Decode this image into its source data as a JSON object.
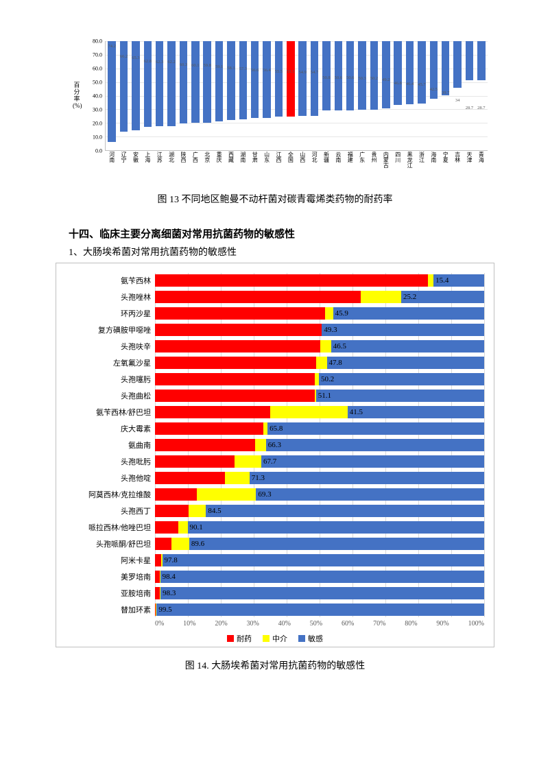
{
  "chart1": {
    "type": "bar",
    "ylabel": "百\n分\n率\n(%)",
    "ymax": 80.0,
    "ytick_step": 10.0,
    "yticks": [
      "0.0",
      "10.0",
      "20.0",
      "30.0",
      "40.0",
      "50.0",
      "60.0",
      "70.0",
      "80.0"
    ],
    "bar_color": "#4472c4",
    "highlight_color": "#ff0000",
    "grid_color": "#e6e6e6",
    "axis_color": "#bfbfbf",
    "label_color": "#595959",
    "font_size_labels": 6.5,
    "data": [
      {
        "cat": "河南",
        "val": 74.2,
        "highlight": false
      },
      {
        "cat": "辽宁",
        "val": 66.2,
        "highlight": false
      },
      {
        "cat": "安徽",
        "val": 65.3,
        "highlight": false
      },
      {
        "cat": "上海",
        "val": 62.8,
        "highlight": false
      },
      {
        "cat": "江苏",
        "val": 62.3,
        "highlight": false
      },
      {
        "cat": "湖北",
        "val": 62.2,
        "highlight": false
      },
      {
        "cat": "陕西",
        "val": 60.3,
        "highlight": false
      },
      {
        "cat": "广西",
        "val": 60.1,
        "highlight": false
      },
      {
        "cat": "北京",
        "val": 59.8,
        "highlight": false
      },
      {
        "cat": "重庆",
        "val": 59.1,
        "highlight": false
      },
      {
        "cat": "西藏",
        "val": 58.1,
        "highlight": false
      },
      {
        "cat": "湖南",
        "val": 57.3,
        "highlight": false
      },
      {
        "cat": "甘肃",
        "val": 56.6,
        "highlight": false
      },
      {
        "cat": "山东",
        "val": 56.4,
        "highlight": false
      },
      {
        "cat": "江西",
        "val": 55.5,
        "highlight": false
      },
      {
        "cat": "全国",
        "val": 55.3,
        "highlight": true
      },
      {
        "cat": "山西",
        "val": 54.9,
        "highlight": false
      },
      {
        "cat": "河北",
        "val": 54.7,
        "highlight": false
      },
      {
        "cat": "新疆",
        "val": 50.8,
        "highlight": false
      },
      {
        "cat": "云南",
        "val": 50.6,
        "highlight": false
      },
      {
        "cat": "福建",
        "val": 50.6,
        "highlight": false
      },
      {
        "cat": "广东",
        "val": 50.3,
        "highlight": false
      },
      {
        "cat": "贵州",
        "val": 50.2,
        "highlight": false
      },
      {
        "cat": "内蒙古",
        "val": 49.2,
        "highlight": false
      },
      {
        "cat": "四川",
        "val": 46.8,
        "highlight": false
      },
      {
        "cat": "黑龙江",
        "val": 46.4,
        "highlight": false
      },
      {
        "cat": "浙江",
        "val": 45.7,
        "highlight": false
      },
      {
        "cat": "海南",
        "val": 42.5,
        "highlight": false
      },
      {
        "cat": "宁夏",
        "val": 39.7,
        "highlight": false
      },
      {
        "cat": "吉林",
        "val": 34,
        "highlight": false
      },
      {
        "cat": "天津",
        "val": 28.7,
        "highlight": false
      },
      {
        "cat": "青海",
        "val": 28.7,
        "highlight": false
      }
    ]
  },
  "caption1": "图 13  不同地区鲍曼不动杆菌对碳青霉烯类药物的耐药率",
  "section_heading": "十四、临床主要分离细菌对常用抗菌药物的敏感性",
  "sub_heading": "1、大肠埃希菌对常用抗菌药物的敏感性",
  "chart2": {
    "type": "stacked_horizontal_bar",
    "xmax": 100,
    "xtick_step": 10,
    "xticks": [
      "0%",
      "10%",
      "20%",
      "30%",
      "40%",
      "50%",
      "60%",
      "70%",
      "80%",
      "90%",
      "100%"
    ],
    "colors": {
      "resistant": "#ff0000",
      "intermediate": "#ffff00",
      "sensitive": "#4472c4"
    },
    "border_color": "#bfbfbf",
    "grid_color": "#d9d9d9",
    "font_size": 11,
    "legend": [
      {
        "label": "耐药",
        "color": "#ff0000"
      },
      {
        "label": "中介",
        "color": "#ffff00"
      },
      {
        "label": "敏感",
        "color": "#4472c4"
      }
    ],
    "rows": [
      {
        "cat": "氨苄西林",
        "r": 82.9,
        "i": 1.7,
        "s": 15.4
      },
      {
        "cat": "头孢唑林",
        "r": 62.4,
        "i": 12.4,
        "s": 25.2
      },
      {
        "cat": "环丙沙星",
        "r": 51.7,
        "i": 2.4,
        "s": 45.9
      },
      {
        "cat": "复方磺胺甲噁唑",
        "r": 50.7,
        "i": 0.0,
        "s": 49.3
      },
      {
        "cat": "头孢呋辛",
        "r": 50.3,
        "i": 3.2,
        "s": 46.5
      },
      {
        "cat": "左氧氟沙星",
        "r": 48.9,
        "i": 3.3,
        "s": 47.8
      },
      {
        "cat": "头孢噻肟",
        "r": 48.6,
        "i": 1.2,
        "s": 50.2
      },
      {
        "cat": "头孢曲松",
        "r": 48.6,
        "i": 0.3,
        "s": 51.1
      },
      {
        "cat": "氨苄西林/舒巴坦",
        "r": 34.9,
        "i": 23.6,
        "s": 41.5
      },
      {
        "cat": "庆大霉素",
        "r": 33,
        "i": 1.2,
        "s": 65.8
      },
      {
        "cat": "氨曲南",
        "r": 30.4,
        "i": 3.3,
        "s": 66.3
      },
      {
        "cat": "头孢吡肟",
        "r": 24.1,
        "i": 8.2,
        "s": 67.7
      },
      {
        "cat": "头孢他啶",
        "r": 21.2,
        "i": 7.5,
        "s": 71.3
      },
      {
        "cat": "阿莫西林/克拉维酸",
        "r": 12.7,
        "i": 18.0,
        "s": 69.3
      },
      {
        "cat": "头孢西丁",
        "r": 10.3,
        "i": 5.2,
        "s": 84.5
      },
      {
        "cat": "哌拉西林/他唑巴坦",
        "r": 7.1,
        "i": 2.8,
        "s": 90.1
      },
      {
        "cat": "头孢哌酮/舒巴坦",
        "r": 4.9,
        "i": 5.5,
        "s": 89.6
      },
      {
        "cat": "阿米卡星",
        "r": 1.9,
        "i": 0.3,
        "s": 97.8
      },
      {
        "cat": "美罗培南",
        "r": 1.5,
        "i": 0.1,
        "s": 98.4
      },
      {
        "cat": "亚胺培南",
        "r": 1.4,
        "i": 0.3,
        "s": 98.3
      },
      {
        "cat": "替加环素",
        "r": 0.2,
        "i": 0.3,
        "s": 99.5
      }
    ]
  },
  "caption2": "图 14.  大肠埃希菌对常用抗菌药物的敏感性"
}
